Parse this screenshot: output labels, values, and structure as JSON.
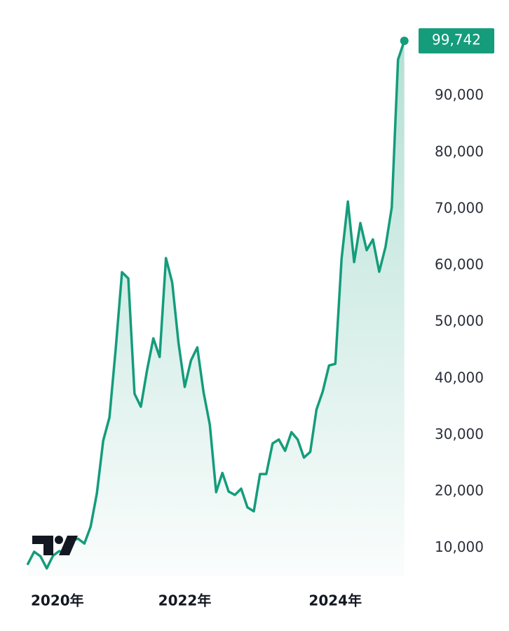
{
  "chart_data": {
    "type": "line",
    "x": [
      2019.917,
      2020.0,
      2020.083,
      2020.167,
      2020.25,
      2020.333,
      2020.417,
      2020.5,
      2020.583,
      2020.667,
      2020.75,
      2020.833,
      2020.917,
      2021.0,
      2021.083,
      2021.167,
      2021.25,
      2021.333,
      2021.417,
      2021.5,
      2021.583,
      2021.667,
      2021.75,
      2021.833,
      2021.917,
      2022.0,
      2022.083,
      2022.167,
      2022.25,
      2022.333,
      2022.417,
      2022.5,
      2022.583,
      2022.667,
      2022.75,
      2022.833,
      2022.917,
      2023.0,
      2023.083,
      2023.167,
      2023.25,
      2023.333,
      2023.417,
      2023.5,
      2023.583,
      2023.667,
      2023.75,
      2023.833,
      2023.917,
      2024.0,
      2024.083,
      2024.167,
      2024.25,
      2024.333,
      2024.417,
      2024.5,
      2024.583,
      2024.667,
      2024.75,
      2024.833,
      2024.917
    ],
    "series": [
      {
        "color": "#149c7b",
        "values": [
          7200,
          9350,
          8550,
          6400,
          8650,
          9450,
          9150,
          11350,
          11650,
          10800,
          13800,
          19700,
          29000,
          33100,
          45200,
          58800,
          57700,
          37300,
          35000,
          41500,
          47100,
          43800,
          61300,
          57000,
          46300,
          38500,
          43200,
          45500,
          37600,
          31800,
          19900,
          23300,
          20000,
          19400,
          20500,
          17200,
          16500,
          23100,
          23100,
          28500,
          29200,
          27200,
          30500,
          29200,
          26000,
          27000,
          34500,
          37700,
          42300,
          42600,
          61200,
          71300,
          60600,
          67500,
          62700,
          64600,
          58900,
          63300,
          70300,
          96400,
          99742
        ],
        "value_labels": [
          null,
          null,
          null,
          null,
          null,
          null,
          null,
          null,
          null,
          null,
          null,
          null,
          null,
          null,
          null,
          null,
          null,
          null,
          null,
          null,
          null,
          null,
          null,
          null,
          null,
          null,
          null,
          null,
          null,
          null,
          null,
          null,
          null,
          null,
          null,
          null,
          null,
          null,
          null,
          null,
          null,
          null,
          null,
          null,
          null,
          null,
          null,
          null,
          null,
          null,
          null,
          null,
          null,
          null,
          null,
          null,
          null,
          null,
          null,
          null,
          "99,742"
        ]
      }
    ],
    "xlim": [
      2019.9,
      2025.05
    ],
    "xticks": [
      {
        "value": 2020,
        "label": "2020年"
      },
      {
        "value": 2022,
        "label": "2022年"
      },
      {
        "value": 2024,
        "label": "2024年"
      }
    ],
    "ylim": [
      5000,
      102000
    ],
    "yticks": [
      {
        "value": 10000,
        "label": "10,000"
      },
      {
        "value": 20000,
        "label": "20,000"
      },
      {
        "value": 30000,
        "label": "30,000"
      },
      {
        "value": 40000,
        "label": "40,000"
      },
      {
        "value": 50000,
        "label": "50,000"
      },
      {
        "value": 60000,
        "label": "60,000"
      },
      {
        "value": 70000,
        "label": "70,000"
      },
      {
        "value": 80000,
        "label": "80,000"
      },
      {
        "value": 90000,
        "label": "90,000"
      }
    ],
    "grid": false,
    "area_fill": true
  }
}
